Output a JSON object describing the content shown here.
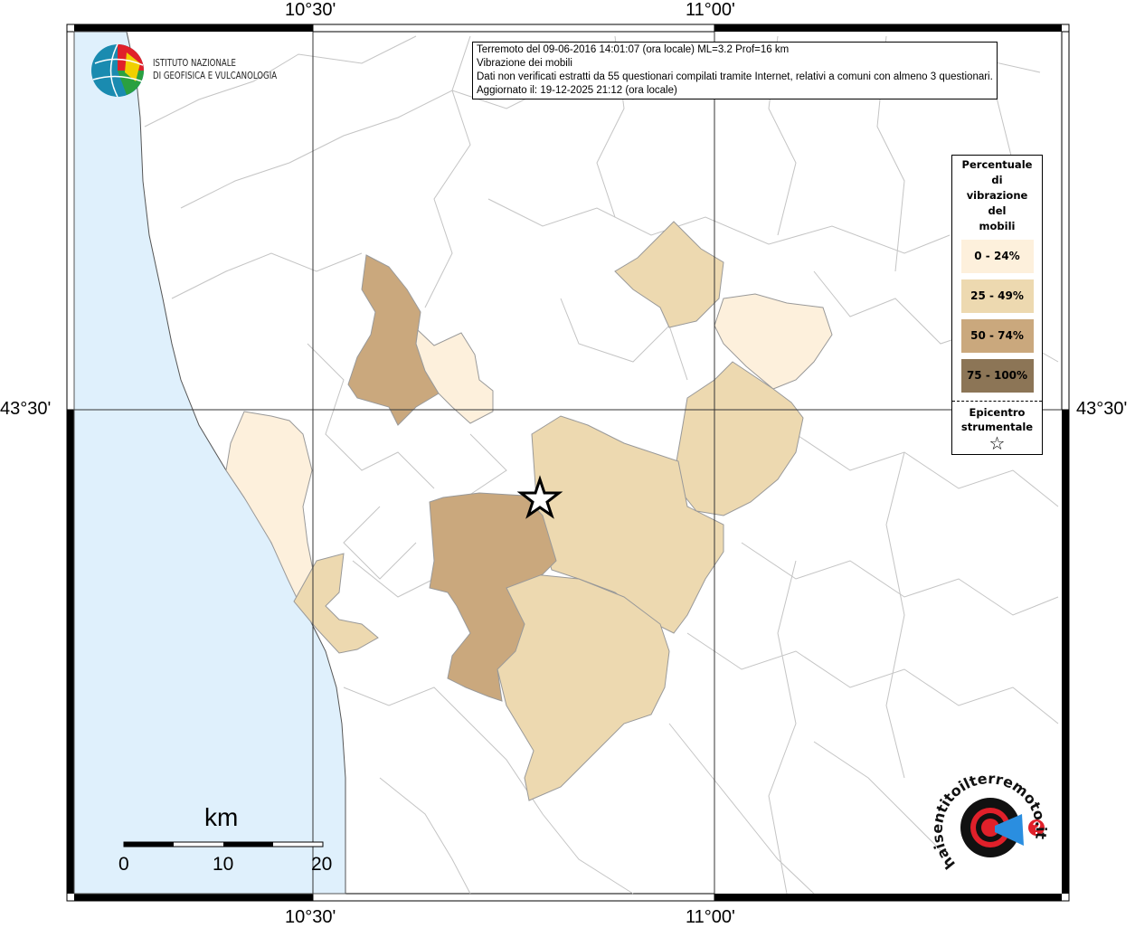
{
  "axes": {
    "top": [
      "10°30'",
      "11°00'"
    ],
    "bottom": [
      "10°30'",
      "11°00'"
    ],
    "left": [
      "43°30'"
    ],
    "right": [
      "43°30'"
    ]
  },
  "info": {
    "lines": [
      "Terremoto del 09-06-2016 14:01:07 (ora locale) ML=3.2 Prof=16 km",
      "Vibrazione dei mobili",
      "Dati non verificati estratti da 55 questionari compilati tramite Internet, relativi a comuni con almeno 3 questionari.",
      "Aggiornato il: 19-12-2025 21:12 (ora locale)"
    ]
  },
  "legend": {
    "title": [
      "Percentuale",
      "di",
      "vibrazione",
      "del",
      "mobili"
    ],
    "classes": [
      {
        "label": "0 - 24%",
        "color": "#fdf0dc"
      },
      {
        "label": "25 - 49%",
        "color": "#edd9b0"
      },
      {
        "label": "50 - 74%",
        "color": "#caa87d"
      },
      {
        "label": "75 - 100%",
        "color": "#8c7556"
      }
    ],
    "epicenter": [
      "Epicentro",
      "strumentale"
    ],
    "epicenter_icon": "star-icon"
  },
  "scale": {
    "unit": "km",
    "labels": [
      "0",
      "10",
      "20"
    ]
  },
  "logos": {
    "ingv": [
      "ISTITUTO NAZIONALE",
      "DI GEOFISICA E VULCANOLOGIA"
    ],
    "hsit": "www.haisentitoilterremoto.it"
  },
  "colors": {
    "sea": "#dff0fc",
    "border": "#bbbbbb"
  }
}
